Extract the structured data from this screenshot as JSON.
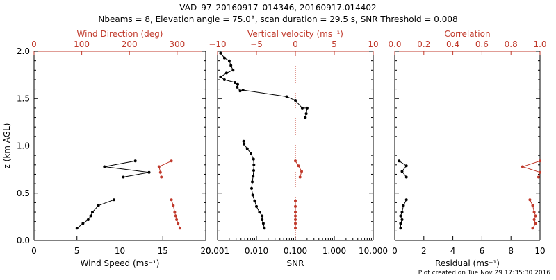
{
  "header": {
    "title": "VAD_97_20160917_014346, 20160917.014402",
    "subtitle": "Nbeams = 8, Elevation angle = 75.0°, scan duration = 29.5 s, SNR Threshold = 0.008"
  },
  "footer": {
    "created": "Plot created on Tue Nov 29 17:35:30 2016"
  },
  "colors": {
    "primary": "#000000",
    "secondary": "#c0392b"
  },
  "chart_data": [
    {
      "type": "line",
      "ylabel": "z (km AGL)",
      "ylim": [
        0,
        2.0
      ],
      "yticks": [
        "0.0",
        "0.5",
        "1.0",
        "1.5",
        "2.0"
      ],
      "bottom_axis": {
        "label": "Wind Speed (ms⁻¹)",
        "range": [
          0,
          20
        ],
        "ticks": [
          "0",
          "5",
          "10",
          "15",
          "20"
        ]
      },
      "top_axis": {
        "label": "Wind Direction (deg)",
        "range": [
          0,
          360
        ],
        "ticks": [
          "0",
          "100",
          "200",
          "300"
        ]
      },
      "series": [
        {
          "color": "#000000",
          "axis": "bottom",
          "segments": [
            [
              [
                5.0,
                0.13
              ],
              [
                5.7,
                0.18
              ],
              [
                6.3,
                0.22
              ],
              [
                6.6,
                0.26
              ],
              [
                6.8,
                0.3
              ],
              [
                7.5,
                0.37
              ],
              [
                9.3,
                0.43
              ]
            ],
            [
              [
                11.8,
                0.84
              ],
              [
                8.2,
                0.78
              ],
              [
                13.4,
                0.72
              ],
              [
                10.4,
                0.67
              ]
            ]
          ]
        },
        {
          "color": "#c0392b",
          "axis": "top",
          "segments": [
            [
              [
                306,
                0.13
              ],
              [
                302,
                0.18
              ],
              [
                299,
                0.22
              ],
              [
                297,
                0.26
              ],
              [
                295,
                0.3
              ],
              [
                292,
                0.37
              ],
              [
                288,
                0.43
              ]
            ],
            [
              [
                288,
                0.84
              ],
              [
                262,
                0.78
              ],
              [
                265,
                0.72
              ],
              [
                267,
                0.67
              ]
            ]
          ]
        }
      ]
    },
    {
      "type": "line",
      "ylim": [
        0,
        2.0
      ],
      "bottom_axis": {
        "label": "SNR",
        "scale": "log",
        "range": [
          0.001,
          10
        ],
        "ticks": [
          "0.001",
          "0.010",
          "0.100",
          "1.000",
          "10.000"
        ]
      },
      "top_axis": {
        "label": "Vertical velocity (ms⁻¹)",
        "range": [
          -10,
          10
        ],
        "ticks": [
          "−10",
          "−5",
          "0",
          "5",
          "10"
        ]
      },
      "reference_line": {
        "axis": "top",
        "value": 0,
        "style": "dotted",
        "color": "#c0392b"
      },
      "series": [
        {
          "color": "#000000",
          "axis": "bottom",
          "segments": [
            [
              [
                0.016,
                0.13
              ],
              [
                0.015,
                0.18
              ],
              [
                0.014,
                0.22
              ],
              [
                0.014,
                0.26
              ],
              [
                0.012,
                0.3
              ],
              [
                0.01,
                0.36
              ],
              [
                0.009,
                0.42
              ],
              [
                0.008,
                0.48
              ],
              [
                0.0075,
                0.55
              ],
              [
                0.0078,
                0.62
              ],
              [
                0.0082,
                0.68
              ],
              [
                0.0085,
                0.74
              ],
              [
                0.0086,
                0.8
              ],
              [
                0.0084,
                0.86
              ],
              [
                0.0072,
                0.92
              ],
              [
                0.0058,
                0.97
              ],
              [
                0.0048,
                1.02
              ],
              [
                0.0047,
                1.05
              ]
            ],
            [
              [
                0.0012,
                1.98
              ],
              [
                0.0015,
                1.93
              ],
              [
                0.002,
                1.9
              ],
              [
                0.0022,
                1.85
              ],
              [
                0.0025,
                1.8
              ],
              [
                0.0017,
                1.77
              ],
              [
                0.0012,
                1.73
              ],
              [
                0.0015,
                1.7
              ],
              [
                0.0028,
                1.67
              ],
              [
                0.0033,
                1.65
              ],
              [
                0.0032,
                1.62
              ],
              [
                0.0038,
                1.58
              ],
              [
                0.0045,
                1.59
              ],
              [
                0.06,
                1.52
              ],
              [
                0.1,
                1.48
              ],
              [
                0.15,
                1.4
              ],
              [
                0.2,
                1.4
              ],
              [
                0.19,
                1.34
              ],
              [
                0.18,
                1.3
              ]
            ]
          ]
        },
        {
          "color": "#c0392b",
          "axis": "top",
          "segments": [
            [
              [
                0,
                0.13
              ],
              [
                0,
                0.18
              ],
              [
                0,
                0.22
              ],
              [
                0,
                0.26
              ],
              [
                0,
                0.3
              ],
              [
                0,
                0.36
              ],
              [
                0,
                0.42
              ]
            ],
            [
              [
                0,
                0.84
              ],
              [
                0.4,
                0.79
              ],
              [
                0.8,
                0.73
              ],
              [
                0.6,
                0.67
              ]
            ]
          ]
        }
      ]
    },
    {
      "type": "line",
      "ylim": [
        0,
        2.0
      ],
      "bottom_axis": {
        "label": "Residual (ms⁻¹)",
        "range": [
          0,
          10
        ],
        "ticks": [
          "0",
          "2",
          "4",
          "6",
          "8",
          "10"
        ]
      },
      "top_axis": {
        "label": "Correlation",
        "range": [
          0,
          1.0
        ],
        "ticks": [
          "0.0",
          "0.2",
          "0.4",
          "0.6",
          "0.8",
          "1.0"
        ]
      },
      "series": [
        {
          "color": "#000000",
          "axis": "bottom",
          "segments": [
            [
              [
                0.4,
                0.13
              ],
              [
                0.4,
                0.18
              ],
              [
                0.5,
                0.22
              ],
              [
                0.4,
                0.26
              ],
              [
                0.5,
                0.3
              ],
              [
                0.6,
                0.37
              ],
              [
                0.8,
                0.43
              ]
            ],
            [
              [
                0.3,
                0.84
              ],
              [
                0.8,
                0.79
              ],
              [
                0.5,
                0.73
              ],
              [
                0.8,
                0.67
              ]
            ]
          ]
        },
        {
          "color": "#c0392b",
          "axis": "top",
          "segments": [
            [
              [
                0.95,
                0.13
              ],
              [
                0.97,
                0.18
              ],
              [
                0.96,
                0.22
              ],
              [
                0.97,
                0.26
              ],
              [
                0.96,
                0.3
              ],
              [
                0.95,
                0.37
              ],
              [
                0.93,
                0.43
              ]
            ],
            [
              [
                1.0,
                0.84
              ],
              [
                0.88,
                0.78
              ],
              [
                1.0,
                0.72
              ],
              [
                0.99,
                0.67
              ]
            ]
          ]
        }
      ]
    }
  ]
}
